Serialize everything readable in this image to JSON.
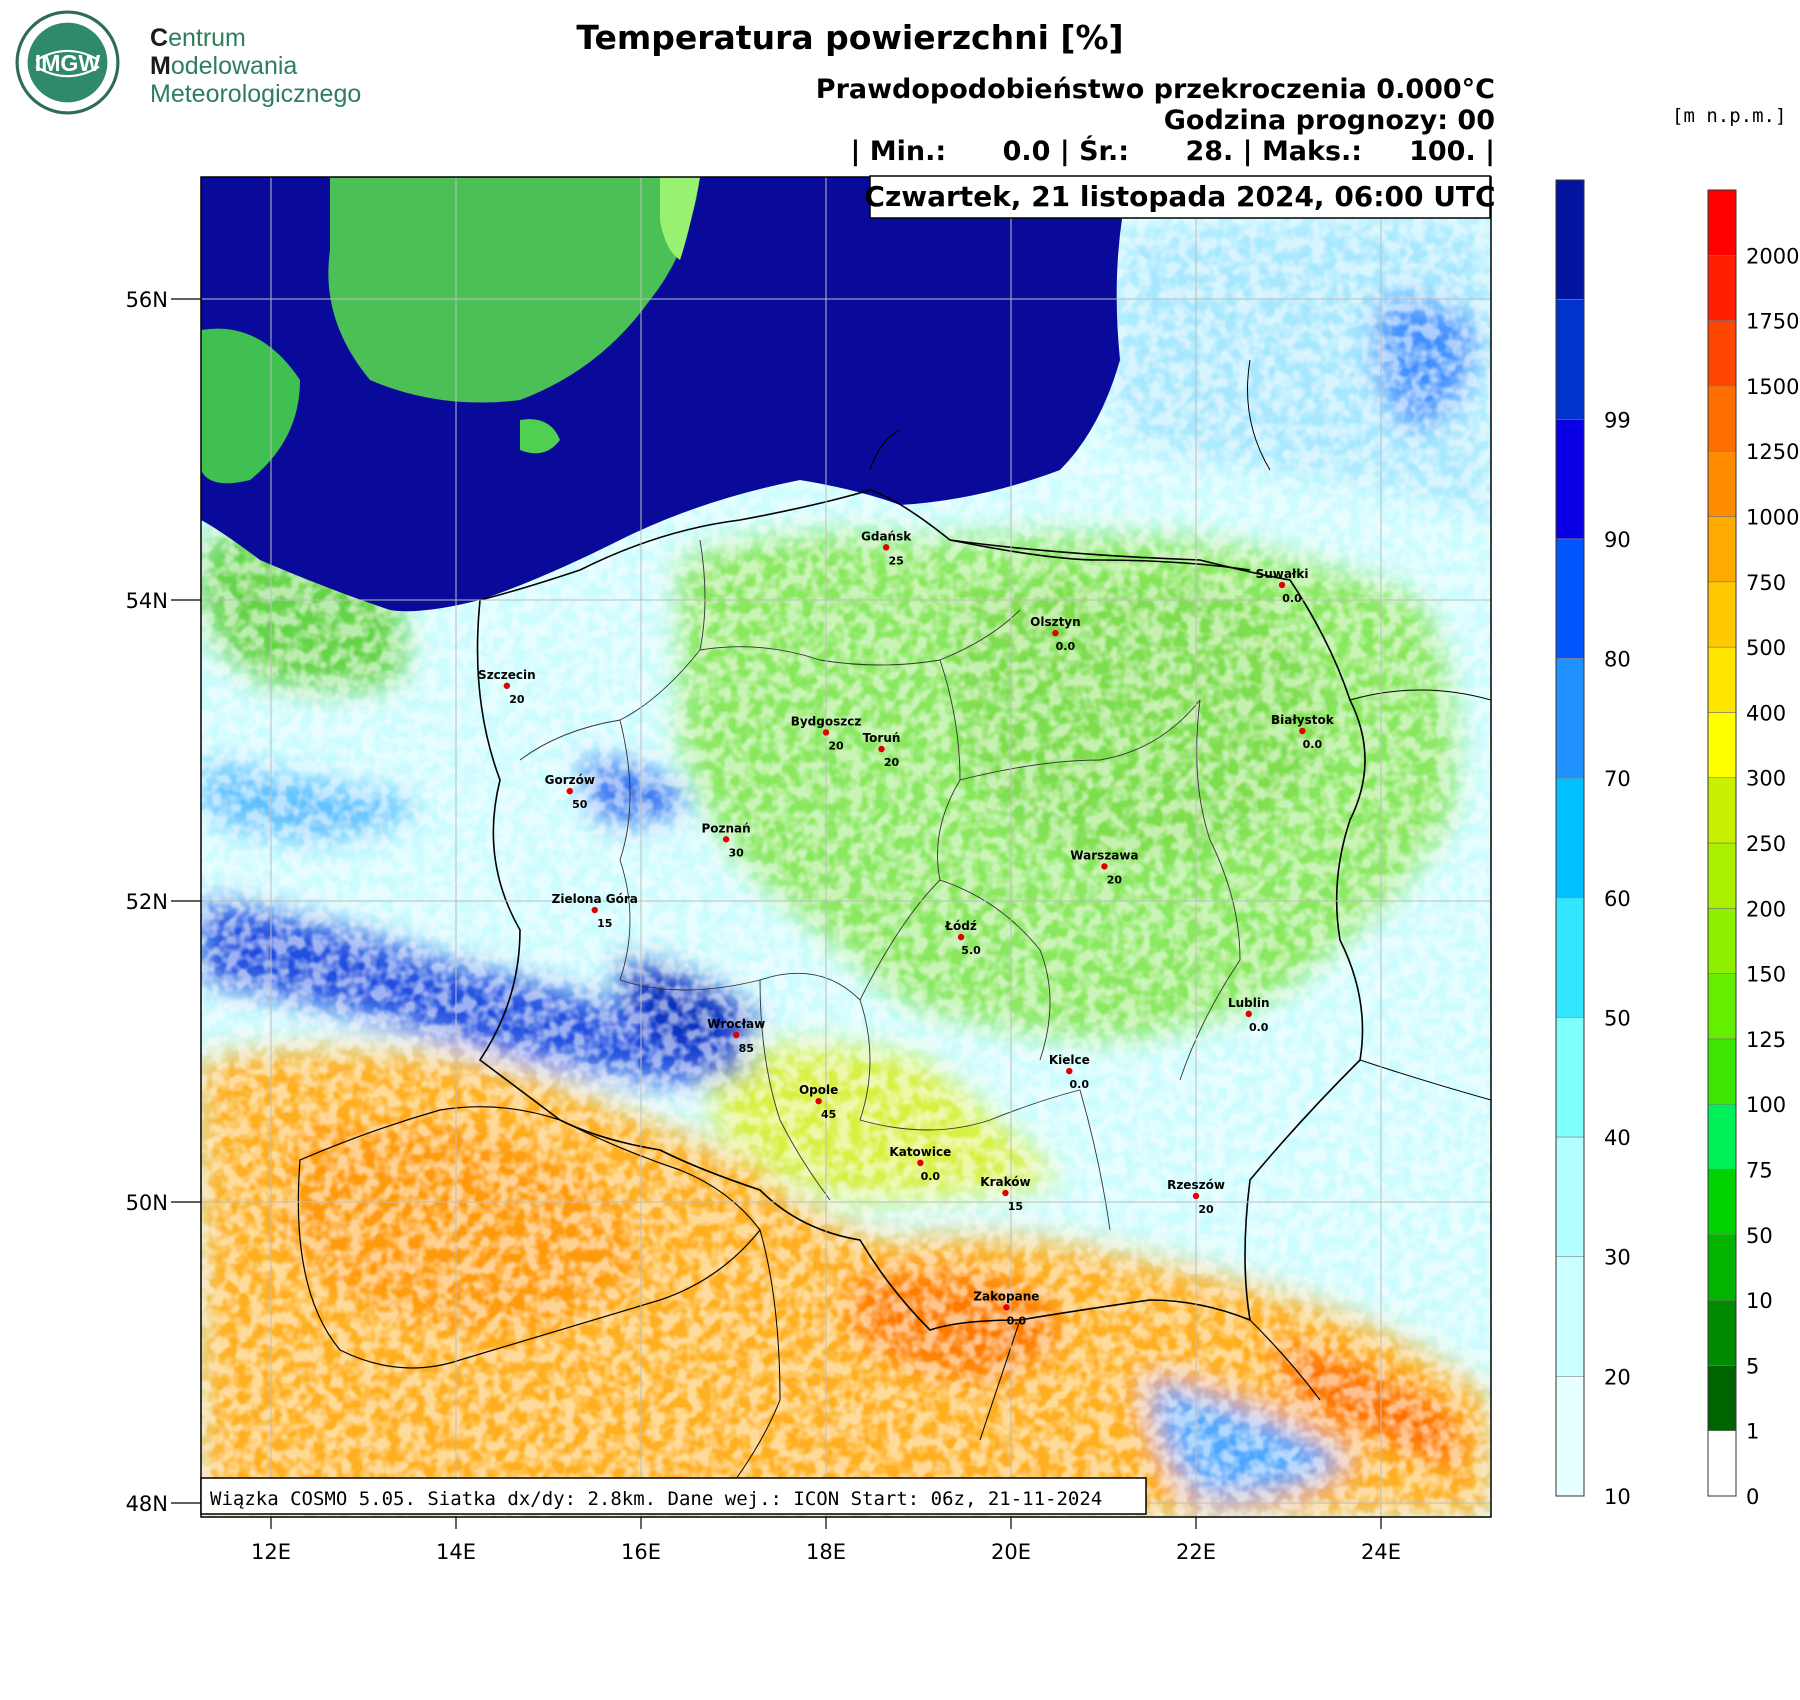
{
  "logo": {
    "badge_text": "IMGW",
    "line1_initial": "C",
    "line1_rest": "entrum",
    "line2_initial": "M",
    "line2_rest": "odelowania",
    "line3_initial": "M",
    "line3_rest": "eteorologicznego"
  },
  "title": "Temperatura powierzchni [%]",
  "subtitle": "Prawdopodobieństwo przekroczenia 0.000°C",
  "forecast_hour": "Godzina prognozy: 00",
  "stats": "| Min.:      0.0 | Śr.:      28. | Maks.:     100. |",
  "date_box": "Czwartek, 21 listopada 2024, 06:00 UTC",
  "footer_box": "Wiązka COSMO 5.05. Siatka dx/dy: 2.8km. Dane wej.: ICON Start: 06z, 21-11-2024",
  "lat_labels": [
    "56N",
    "54N",
    "52N",
    "50N",
    "48N"
  ],
  "lat_values": [
    56,
    54,
    52,
    50,
    48
  ],
  "lon_labels": [
    "12E",
    "14E",
    "16E",
    "18E",
    "20E",
    "22E",
    "24E"
  ],
  "lon_values": [
    12,
    14,
    16,
    18,
    20,
    22,
    24
  ],
  "prob_scale": {
    "labels": [
      "10",
      "20",
      "30",
      "40",
      "50",
      "60",
      "70",
      "80",
      "90",
      "99"
    ],
    "colors": [
      "#e6ffff",
      "#ccffff",
      "#b3ffff",
      "#80ffff",
      "#33e6ff",
      "#00c0ff",
      "#1e90ff",
      "#0055ff",
      "#0a00e6",
      "#0033cc",
      "#0014a0"
    ]
  },
  "height_scale": {
    "unit": "[m n.p.m.]",
    "labels": [
      "0",
      "1",
      "5",
      "10",
      "50",
      "75",
      "100",
      "125",
      "150",
      "200",
      "250",
      "300",
      "400",
      "500",
      "750",
      "1000",
      "1250",
      "1500",
      "1750",
      "2000"
    ],
    "colors": [
      "#ffffff",
      "#006400",
      "#008c00",
      "#00b400",
      "#00d200",
      "#00f05a",
      "#3ce600",
      "#64ee00",
      "#8cf000",
      "#aaf000",
      "#c8f000",
      "#ffff00",
      "#ffe600",
      "#ffc800",
      "#ffaa00",
      "#ff8c00",
      "#ff6e00",
      "#ff4600",
      "#ff1e00",
      "#ff0000"
    ]
  },
  "cities": [
    {
      "name": "Gdańsk",
      "value": "25",
      "lon": 18.65,
      "lat": 54.35
    },
    {
      "name": "Suwałki",
      "value": "0.0",
      "lon": 22.93,
      "lat": 54.1
    },
    {
      "name": "Olsztyn",
      "value": "0.0",
      "lon": 20.48,
      "lat": 53.78
    },
    {
      "name": "Szczecin",
      "value": "20",
      "lon": 14.55,
      "lat": 53.43
    },
    {
      "name": "Białystok",
      "value": "0.0",
      "lon": 23.15,
      "lat": 53.13
    },
    {
      "name": "Bydgoszcz",
      "value": "20",
      "lon": 18.0,
      "lat": 53.12
    },
    {
      "name": "Toruń",
      "value": "20",
      "lon": 18.6,
      "lat": 53.01
    },
    {
      "name": "Gorzów",
      "value": "50",
      "lon": 15.23,
      "lat": 52.73
    },
    {
      "name": "Poznań",
      "value": "30",
      "lon": 16.92,
      "lat": 52.41
    },
    {
      "name": "Warszawa",
      "value": "20",
      "lon": 21.01,
      "lat": 52.23
    },
    {
      "name": "Zielona Góra",
      "value": "15",
      "lon": 15.5,
      "lat": 51.94
    },
    {
      "name": "Łódź",
      "value": "5.0",
      "lon": 19.46,
      "lat": 51.76
    },
    {
      "name": "Lublin",
      "value": "0.0",
      "lon": 22.57,
      "lat": 51.25
    },
    {
      "name": "Wrocław",
      "value": "85",
      "lon": 17.03,
      "lat": 51.11
    },
    {
      "name": "Kielce",
      "value": "0.0",
      "lon": 20.63,
      "lat": 50.87
    },
    {
      "name": "Opole",
      "value": "45",
      "lon": 17.92,
      "lat": 50.67
    },
    {
      "name": "Katowice",
      "value": "0.0",
      "lon": 19.02,
      "lat": 50.26
    },
    {
      "name": "Rzeszów",
      "value": "20",
      "lon": 22.0,
      "lat": 50.04
    },
    {
      "name": "Kraków",
      "value": "15",
      "lon": 19.94,
      "lat": 50.06
    },
    {
      "name": "Zakopane",
      "value": "0.0",
      "lon": 19.95,
      "lat": 49.3
    }
  ]
}
